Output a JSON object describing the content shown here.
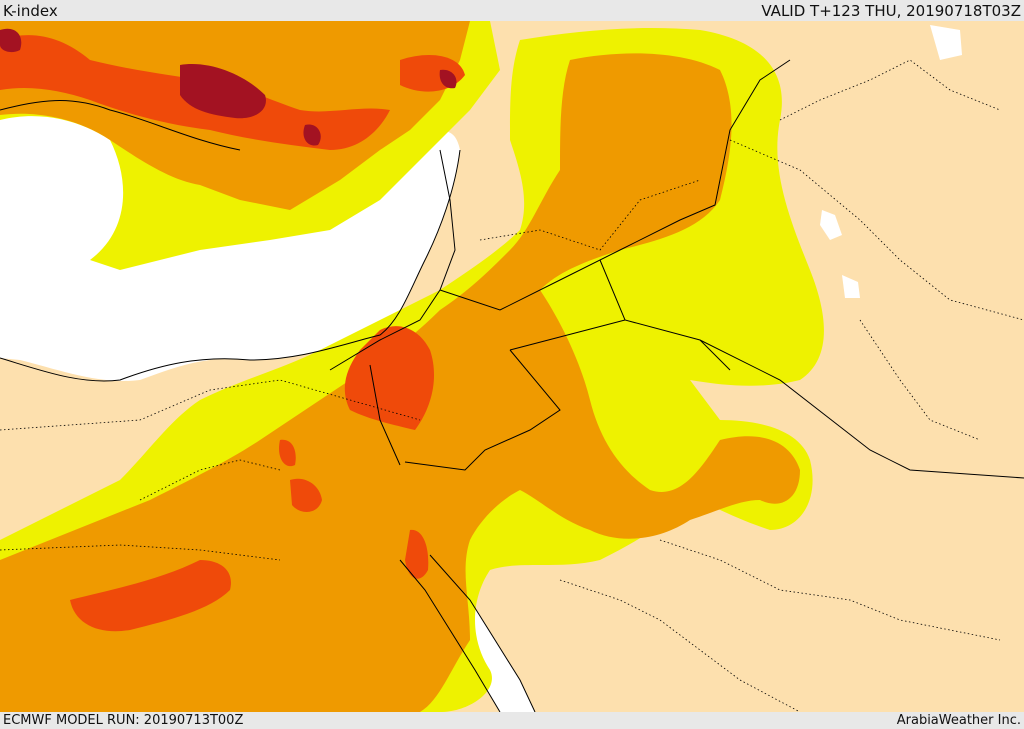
{
  "header": {
    "title": "K-index",
    "valid": "VALID T+123 THU, 20190718T03Z"
  },
  "footer": {
    "model_run": "ECMWF MODEL RUN: 20190713T00Z",
    "credit": "ArabiaWeather Inc."
  },
  "colors": {
    "land": "#fde0ae",
    "sea": "#ffffff",
    "band_yellow": "#eef200",
    "band_orange": "#ef9a00",
    "band_red": "#ef4a0a",
    "band_darkred": "#a31222",
    "border_line": "#000000"
  }
}
